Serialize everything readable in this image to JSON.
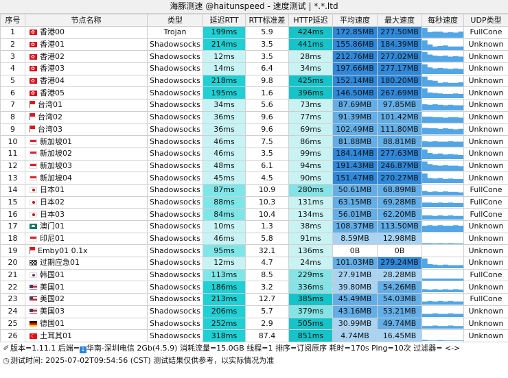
{
  "window": {
    "title": "海豚测速 @haitunspeed - 速度测试 | *.*.ltd"
  },
  "columns": [
    "序号",
    "节点名称",
    "类型",
    "延迟RTT",
    "RTT标准差",
    "HTTP延迟",
    "平均速度",
    "最大速度",
    "每秒速度",
    "UDP类型"
  ],
  "rows": [
    {
      "id": "1",
      "flag": "hk",
      "name": "香港00",
      "type": "Trojan",
      "rtt": "199ms",
      "std": "5.9",
      "http": "424ms",
      "avg": "172.85MB",
      "max": "277.50MB",
      "spark": [
        0.95,
        0.55,
        0.6,
        0.6,
        0.5,
        0.55,
        0.5,
        0.6
      ],
      "udp": "FullCone"
    },
    {
      "id": "2",
      "flag": "hk",
      "name": "香港01",
      "type": "Shadowsocks",
      "rtt": "214ms",
      "std": "3.5",
      "http": "441ms",
      "avg": "155.86MB",
      "max": "184.39MB",
      "spark": [
        0.95,
        0.55,
        0.35,
        0.4,
        0.45,
        0.35,
        0.35,
        0.35
      ],
      "udp": "Unknown"
    },
    {
      "id": "3",
      "flag": "hk",
      "name": "香港02",
      "type": "Shadowsocks",
      "rtt": "12ms",
      "std": "3.5",
      "http": "28ms",
      "avg": "212.76MB",
      "max": "277.02MB",
      "spark": [
        0.95,
        0.7,
        0.6,
        0.55,
        0.6,
        0.5,
        0.55,
        0.5
      ],
      "udp": "Unknown"
    },
    {
      "id": "4",
      "flag": "hk",
      "name": "香港03",
      "type": "Shadowsocks",
      "rtt": "14ms",
      "std": "6.4",
      "http": "34ms",
      "avg": "197.66MB",
      "max": "277.17MB",
      "spark": [
        0.95,
        0.65,
        0.55,
        0.6,
        0.55,
        0.5,
        0.55,
        0.5
      ],
      "udp": "Unknown"
    },
    {
      "id": "5",
      "flag": "hk",
      "name": "香港04",
      "type": "Shadowsocks",
      "rtt": "218ms",
      "std": "9.8",
      "http": "425ms",
      "avg": "152.14MB",
      "max": "180.20MB",
      "spark": [
        0.95,
        0.6,
        0.55,
        0.35,
        0.4,
        0.35,
        0.35,
        0.4
      ],
      "udp": "Unknown"
    },
    {
      "id": "6",
      "flag": "hk",
      "name": "香港05",
      "type": "Shadowsocks",
      "rtt": "195ms",
      "std": "1.6",
      "http": "396ms",
      "avg": "146.50MB",
      "max": "267.69MB",
      "spark": [
        0.95,
        0.55,
        0.5,
        0.45,
        0.4,
        0.4,
        0.45,
        0.4
      ],
      "udp": "Unknown"
    },
    {
      "id": "7",
      "flag": "tw",
      "name": "台湾01",
      "type": "Shadowsocks",
      "rtt": "34ms",
      "std": "5.6",
      "http": "73ms",
      "avg": "87.69MB",
      "max": "97.85MB",
      "spark": [
        0.6,
        0.55,
        0.6,
        0.55,
        0.5,
        0.55,
        0.5,
        0.5
      ],
      "udp": "Unknown"
    },
    {
      "id": "8",
      "flag": "tw",
      "name": "台湾02",
      "type": "Shadowsocks",
      "rtt": "36ms",
      "std": "9.6",
      "http": "77ms",
      "avg": "91.39MB",
      "max": "101.42MB",
      "spark": [
        0.6,
        0.6,
        0.55,
        0.55,
        0.5,
        0.55,
        0.55,
        0.5
      ],
      "udp": "Unknown"
    },
    {
      "id": "9",
      "flag": "tw",
      "name": "台湾03",
      "type": "Shadowsocks",
      "rtt": "36ms",
      "std": "9.6",
      "http": "69ms",
      "avg": "102.49MB",
      "max": "111.80MB",
      "spark": [
        0.65,
        0.6,
        0.6,
        0.55,
        0.6,
        0.55,
        0.5,
        0.55
      ],
      "udp": "Unknown"
    },
    {
      "id": "10",
      "flag": "sg",
      "name": "新加坡01",
      "type": "Shadowsocks",
      "rtt": "46ms",
      "std": "7.5",
      "http": "86ms",
      "avg": "81.88MB",
      "max": "88.81MB",
      "spark": [
        0.55,
        0.5,
        0.55,
        0.5,
        0.5,
        0.55,
        0.5,
        0.5
      ],
      "udp": "Unknown"
    },
    {
      "id": "11",
      "flag": "sg",
      "name": "新加坡02",
      "type": "Shadowsocks",
      "rtt": "46ms",
      "std": "3.5",
      "http": "99ms",
      "avg": "184.14MB",
      "max": "277.63MB",
      "spark": [
        0.95,
        0.6,
        0.5,
        0.55,
        0.45,
        0.5,
        0.45,
        0.4
      ],
      "udp": "Unknown"
    },
    {
      "id": "12",
      "flag": "sg",
      "name": "新加坡03",
      "type": "Shadowsocks",
      "rtt": "48ms",
      "std": "6.1",
      "http": "94ms",
      "avg": "191.43MB",
      "max": "246.87MB",
      "spark": [
        0.9,
        0.65,
        0.55,
        0.5,
        0.55,
        0.5,
        0.5,
        0.45
      ],
      "udp": "Unknown"
    },
    {
      "id": "13",
      "flag": "sg",
      "name": "新加坡04",
      "type": "Shadowsocks",
      "rtt": "45ms",
      "std": "4.5",
      "http": "90ms",
      "avg": "151.47MB",
      "max": "270.27MB",
      "spark": [
        0.95,
        0.5,
        0.45,
        0.5,
        0.4,
        0.45,
        0.4,
        0.4
      ],
      "udp": "Unknown"
    },
    {
      "id": "14",
      "flag": "jp",
      "name": "日本01",
      "type": "Shadowsocks",
      "rtt": "87ms",
      "std": "10.9",
      "http": "280ms",
      "avg": "50.61MB",
      "max": "68.89MB",
      "spark": [
        0.45,
        0.35,
        0.4,
        0.35,
        0.4,
        0.35,
        0.35,
        0.3
      ],
      "udp": "FullCone"
    },
    {
      "id": "15",
      "flag": "jp",
      "name": "日本02",
      "type": "Shadowsocks",
      "rtt": "88ms",
      "std": "10.3",
      "http": "131ms",
      "avg": "63.15MB",
      "max": "69.28MB",
      "spark": [
        0.45,
        0.45,
        0.4,
        0.45,
        0.4,
        0.45,
        0.4,
        0.4
      ],
      "udp": "FullCone"
    },
    {
      "id": "16",
      "flag": "jp",
      "name": "日本03",
      "type": "Shadowsocks",
      "rtt": "84ms",
      "std": "10.4",
      "http": "134ms",
      "avg": "56.01MB",
      "max": "62.20MB",
      "spark": [
        0.4,
        0.4,
        0.35,
        0.4,
        0.35,
        0.4,
        0.35,
        0.35
      ],
      "udp": "FullCone"
    },
    {
      "id": "17",
      "flag": "mo",
      "name": "澳门01",
      "type": "Shadowsocks",
      "rtt": "10ms",
      "std": "1.3",
      "http": "38ms",
      "avg": "108.37MB",
      "max": "113.50MB",
      "spark": [
        0.6,
        0.65,
        0.6,
        0.65,
        0.6,
        0.6,
        0.65,
        0.6
      ],
      "udp": "Unknown"
    },
    {
      "id": "18",
      "flag": "id",
      "name": "印尼01",
      "type": "Shadowsocks",
      "rtt": "46ms",
      "std": "5.8",
      "http": "91ms",
      "avg": "8.59MB",
      "max": "12.98MB",
      "spark": [
        0.1,
        0.1,
        0.08,
        0.1,
        0.08,
        0.1,
        0.08,
        0.08
      ],
      "udp": "Unknown"
    },
    {
      "id": "19",
      "flag": "tw",
      "name": "Emby01 0.1x",
      "type": "Shadowsocks",
      "rtt": "95ms",
      "std": "32.1",
      "http": "136ms",
      "avg": "0B",
      "max": "0B",
      "spark": [
        0,
        0,
        0,
        0,
        0,
        0,
        0,
        0
      ],
      "udp": "Unknown"
    },
    {
      "id": "20",
      "flag": "chk",
      "name": "过期应急01",
      "type": "Shadowsocks",
      "rtt": "12ms",
      "std": "4.7",
      "http": "24ms",
      "avg": "101.03MB",
      "max": "279.24MB",
      "spark": [
        0.95,
        0.4,
        0.35,
        0.3,
        0.35,
        0.3,
        0.3,
        0.3
      ],
      "udp": "Unknown"
    },
    {
      "id": "21",
      "flag": "kr",
      "name": "韩国01",
      "type": "Shadowsocks",
      "rtt": "113ms",
      "std": "8.5",
      "http": "229ms",
      "avg": "27.91MB",
      "max": "28.28MB",
      "spark": [
        0.2,
        0.2,
        0.2,
        0.2,
        0.2,
        0.2,
        0.2,
        0.2
      ],
      "udp": "FullCone"
    },
    {
      "id": "22",
      "flag": "us",
      "name": "美国01",
      "type": "Shadowsocks",
      "rtt": "186ms",
      "std": "3.2",
      "http": "336ms",
      "avg": "39.80MB",
      "max": "54.26MB",
      "spark": [
        0.3,
        0.25,
        0.3,
        0.25,
        0.3,
        0.25,
        0.3,
        0.25
      ],
      "udp": "Unknown"
    },
    {
      "id": "23",
      "flag": "us",
      "name": "美国02",
      "type": "Shadowsocks",
      "rtt": "213ms",
      "std": "12.7",
      "http": "385ms",
      "avg": "45.49MB",
      "max": "54.03MB",
      "spark": [
        0.3,
        0.35,
        0.3,
        0.35,
        0.3,
        0.35,
        0.3,
        0.3
      ],
      "udp": "FullCone"
    },
    {
      "id": "24",
      "flag": "us",
      "name": "美国03",
      "type": "Shadowsocks",
      "rtt": "206ms",
      "std": "5.7",
      "http": "379ms",
      "avg": "43.16MB",
      "max": "53.21MB",
      "spark": [
        0.3,
        0.3,
        0.35,
        0.3,
        0.3,
        0.35,
        0.3,
        0.3
      ],
      "udp": "Unknown"
    },
    {
      "id": "25",
      "flag": "de",
      "name": "德国01",
      "type": "Shadowsocks",
      "rtt": "252ms",
      "std": "2.9",
      "http": "505ms",
      "avg": "30.99MB",
      "max": "49.74MB",
      "spark": [
        0.25,
        0.25,
        0.3,
        0.25,
        0.25,
        0.3,
        0.25,
        0.25
      ],
      "udp": "Unknown"
    },
    {
      "id": "26",
      "flag": "tr",
      "name": "土耳其01",
      "type": "Shadowsocks",
      "rtt": "318ms",
      "std": "87.4",
      "http": "851ms",
      "avg": "4.74MB",
      "max": "16.45MB",
      "spark": [
        0.1,
        0.05,
        0.05,
        0.08,
        0.05,
        0.05,
        0.05,
        0.05
      ],
      "udp": "Unknown"
    }
  ],
  "colors": {
    "rtt_hot": "#1fd0d4",
    "rtt_mid": "#7fe6e8",
    "rtt_cool": "#c8f3f4",
    "http_hot": "#16c3c8",
    "http_mid": "#86e3e5",
    "http_cool": "#c9f2f3",
    "speed_dark": "#2f88d8",
    "speed_mid": "#63aee6",
    "speed_light": "#a9d3f2",
    "spark": "#52a6e6"
  },
  "footer": {
    "line1_prefix": "版本=1.11.1  后端=",
    "line1_rest": "华南-深圳电信 2Gb(4.5.9) 消耗流量=15.0GB  线程=1  排序=订阅原序  耗时=170s  Ping=10次  过滤器= <->",
    "line2": "测试时间: 2025-07-02T09:54:56 (CST)  测试结果仅供参考，以实际情况为准"
  }
}
